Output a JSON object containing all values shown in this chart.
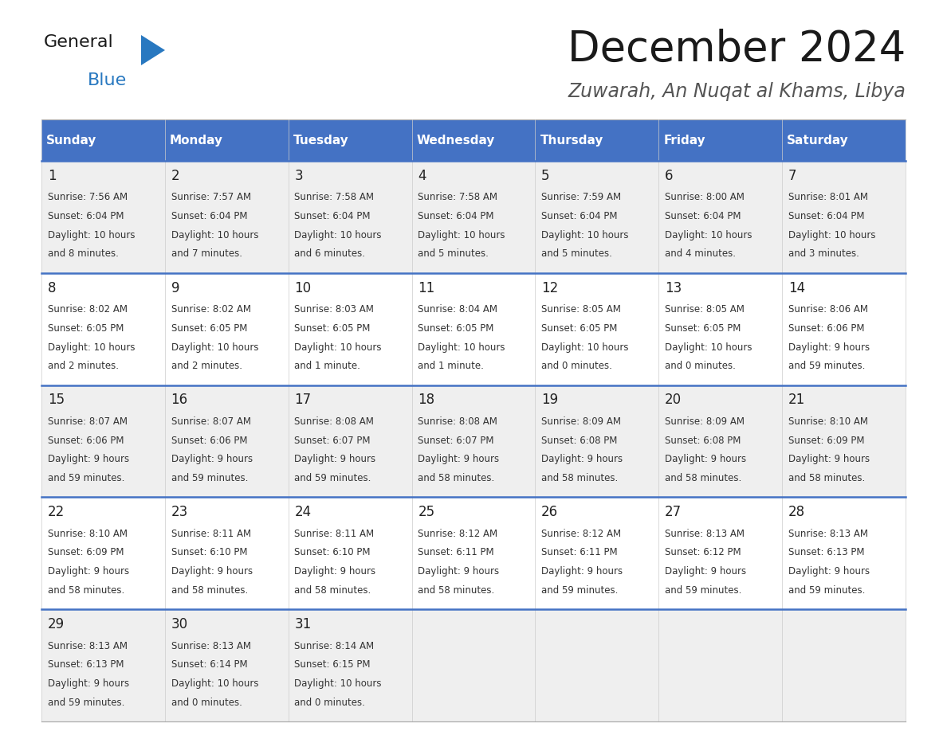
{
  "title": "December 2024",
  "subtitle": "Zuwarah, An Nuqat al Khams, Libya",
  "header_bg_color": "#4472C4",
  "header_text_color": "#FFFFFF",
  "days_of_week": [
    "Sunday",
    "Monday",
    "Tuesday",
    "Wednesday",
    "Thursday",
    "Friday",
    "Saturday"
  ],
  "row_bg_even": "#EFEFEF",
  "row_bg_odd": "#FFFFFF",
  "row_separator_color": "#4472C4",
  "cell_text_color": "#333333",
  "day_number_color": "#222222",
  "calendar_data": [
    [
      {
        "day": 1,
        "sunrise": "7:56 AM",
        "sunset": "6:04 PM",
        "daylight_l1": "10 hours",
        "daylight_l2": "and 8 minutes."
      },
      {
        "day": 2,
        "sunrise": "7:57 AM",
        "sunset": "6:04 PM",
        "daylight_l1": "10 hours",
        "daylight_l2": "and 7 minutes."
      },
      {
        "day": 3,
        "sunrise": "7:58 AM",
        "sunset": "6:04 PM",
        "daylight_l1": "10 hours",
        "daylight_l2": "and 6 minutes."
      },
      {
        "day": 4,
        "sunrise": "7:58 AM",
        "sunset": "6:04 PM",
        "daylight_l1": "10 hours",
        "daylight_l2": "and 5 minutes."
      },
      {
        "day": 5,
        "sunrise": "7:59 AM",
        "sunset": "6:04 PM",
        "daylight_l1": "10 hours",
        "daylight_l2": "and 5 minutes."
      },
      {
        "day": 6,
        "sunrise": "8:00 AM",
        "sunset": "6:04 PM",
        "daylight_l1": "10 hours",
        "daylight_l2": "and 4 minutes."
      },
      {
        "day": 7,
        "sunrise": "8:01 AM",
        "sunset": "6:04 PM",
        "daylight_l1": "10 hours",
        "daylight_l2": "and 3 minutes."
      }
    ],
    [
      {
        "day": 8,
        "sunrise": "8:02 AM",
        "sunset": "6:05 PM",
        "daylight_l1": "10 hours",
        "daylight_l2": "and 2 minutes."
      },
      {
        "day": 9,
        "sunrise": "8:02 AM",
        "sunset": "6:05 PM",
        "daylight_l1": "10 hours",
        "daylight_l2": "and 2 minutes."
      },
      {
        "day": 10,
        "sunrise": "8:03 AM",
        "sunset": "6:05 PM",
        "daylight_l1": "10 hours",
        "daylight_l2": "and 1 minute."
      },
      {
        "day": 11,
        "sunrise": "8:04 AM",
        "sunset": "6:05 PM",
        "daylight_l1": "10 hours",
        "daylight_l2": "and 1 minute."
      },
      {
        "day": 12,
        "sunrise": "8:05 AM",
        "sunset": "6:05 PM",
        "daylight_l1": "10 hours",
        "daylight_l2": "and 0 minutes."
      },
      {
        "day": 13,
        "sunrise": "8:05 AM",
        "sunset": "6:05 PM",
        "daylight_l1": "10 hours",
        "daylight_l2": "and 0 minutes."
      },
      {
        "day": 14,
        "sunrise": "8:06 AM",
        "sunset": "6:06 PM",
        "daylight_l1": "9 hours",
        "daylight_l2": "and 59 minutes."
      }
    ],
    [
      {
        "day": 15,
        "sunrise": "8:07 AM",
        "sunset": "6:06 PM",
        "daylight_l1": "9 hours",
        "daylight_l2": "and 59 minutes."
      },
      {
        "day": 16,
        "sunrise": "8:07 AM",
        "sunset": "6:06 PM",
        "daylight_l1": "9 hours",
        "daylight_l2": "and 59 minutes."
      },
      {
        "day": 17,
        "sunrise": "8:08 AM",
        "sunset": "6:07 PM",
        "daylight_l1": "9 hours",
        "daylight_l2": "and 59 minutes."
      },
      {
        "day": 18,
        "sunrise": "8:08 AM",
        "sunset": "6:07 PM",
        "daylight_l1": "9 hours",
        "daylight_l2": "and 58 minutes."
      },
      {
        "day": 19,
        "sunrise": "8:09 AM",
        "sunset": "6:08 PM",
        "daylight_l1": "9 hours",
        "daylight_l2": "and 58 minutes."
      },
      {
        "day": 20,
        "sunrise": "8:09 AM",
        "sunset": "6:08 PM",
        "daylight_l1": "9 hours",
        "daylight_l2": "and 58 minutes."
      },
      {
        "day": 21,
        "sunrise": "8:10 AM",
        "sunset": "6:09 PM",
        "daylight_l1": "9 hours",
        "daylight_l2": "and 58 minutes."
      }
    ],
    [
      {
        "day": 22,
        "sunrise": "8:10 AM",
        "sunset": "6:09 PM",
        "daylight_l1": "9 hours",
        "daylight_l2": "and 58 minutes."
      },
      {
        "day": 23,
        "sunrise": "8:11 AM",
        "sunset": "6:10 PM",
        "daylight_l1": "9 hours",
        "daylight_l2": "and 58 minutes."
      },
      {
        "day": 24,
        "sunrise": "8:11 AM",
        "sunset": "6:10 PM",
        "daylight_l1": "9 hours",
        "daylight_l2": "and 58 minutes."
      },
      {
        "day": 25,
        "sunrise": "8:12 AM",
        "sunset": "6:11 PM",
        "daylight_l1": "9 hours",
        "daylight_l2": "and 58 minutes."
      },
      {
        "day": 26,
        "sunrise": "8:12 AM",
        "sunset": "6:11 PM",
        "daylight_l1": "9 hours",
        "daylight_l2": "and 59 minutes."
      },
      {
        "day": 27,
        "sunrise": "8:13 AM",
        "sunset": "6:12 PM",
        "daylight_l1": "9 hours",
        "daylight_l2": "and 59 minutes."
      },
      {
        "day": 28,
        "sunrise": "8:13 AM",
        "sunset": "6:13 PM",
        "daylight_l1": "9 hours",
        "daylight_l2": "and 59 minutes."
      }
    ],
    [
      {
        "day": 29,
        "sunrise": "8:13 AM",
        "sunset": "6:13 PM",
        "daylight_l1": "9 hours",
        "daylight_l2": "and 59 minutes."
      },
      {
        "day": 30,
        "sunrise": "8:13 AM",
        "sunset": "6:14 PM",
        "daylight_l1": "10 hours",
        "daylight_l2": "and 0 minutes."
      },
      {
        "day": 31,
        "sunrise": "8:14 AM",
        "sunset": "6:15 PM",
        "daylight_l1": "10 hours",
        "daylight_l2": "and 0 minutes."
      },
      null,
      null,
      null,
      null
    ]
  ],
  "logo_text1": "General",
  "logo_text2": "Blue",
  "logo_text1_color": "#1a1a1a",
  "logo_text2_color": "#2878C0",
  "logo_triangle_color": "#2878C0",
  "title_fontsize": 38,
  "subtitle_fontsize": 17,
  "header_fontsize": 11,
  "day_number_fontsize": 12,
  "cell_fontsize": 8.5
}
